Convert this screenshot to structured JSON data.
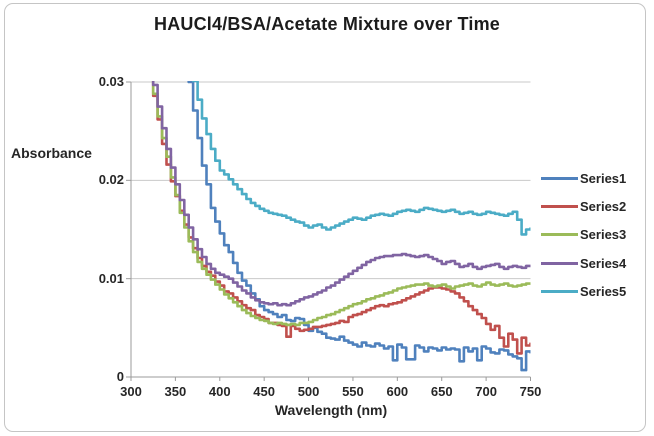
{
  "colors": {
    "gridline": "#c9c9c9",
    "axis": "#9b9b9b",
    "text": "#262626",
    "series1": "#4F81BD",
    "series2": "#C0504D",
    "series3": "#9BBB59",
    "series4": "#8064A2",
    "series5": "#4BACC6"
  },
  "chart_data": {
    "type": "line",
    "title": "HAUCl4/BSA/Acetate Mixture over Time",
    "xlabel": "Wavelength (nm)",
    "ylabel": "Absorbance",
    "xlim": [
      300,
      750
    ],
    "ylim": [
      0,
      0.03
    ],
    "x_ticks": [
      300,
      350,
      400,
      450,
      500,
      550,
      600,
      650,
      700,
      750
    ],
    "y_ticks": [
      0,
      0.01,
      0.02,
      0.03
    ],
    "y_tick_labels": [
      "0",
      "0.01",
      "0.02",
      "0.03"
    ],
    "grid": "horizontal-gridlines-at-0.01-0.02-0.03",
    "legend_position": "right",
    "x_step_nm": 5,
    "note": "Noisy step-like absorbance spectra; values sampled every 5 nm, series clipped at 0.03 top of plot",
    "series": [
      {
        "name": "Series1",
        "color": "#4F81BD",
        "x_start": 360,
        "values": [
          0.0331,
          0.03,
          0.0271,
          0.0243,
          0.0215,
          0.0196,
          0.0172,
          0.0158,
          0.0146,
          0.0134,
          0.0127,
          0.0116,
          0.0106,
          0.0098,
          0.0093,
          0.0085,
          0.0079,
          0.0072,
          0.0068,
          0.0066,
          0.0064,
          0.0061,
          0.0063,
          0.0058,
          0.0057,
          0.006,
          0.0059,
          0.0053,
          0.0047,
          0.005,
          0.0046,
          0.0044,
          0.004,
          0.0039,
          0.0038,
          0.0041,
          0.0037,
          0.0035,
          0.0033,
          0.0031,
          0.0035,
          0.0032,
          0.0031,
          0.0034,
          0.0032,
          0.0029,
          0.0031,
          0.0017,
          0.0033,
          0.003,
          0.0018,
          0.0018,
          0.0032,
          0.003,
          0.0026,
          0.003,
          0.0029,
          0.0027,
          0.003,
          0.0028,
          0.0029,
          0.0028,
          0.0016,
          0.003,
          0.0026,
          0.0029,
          0.0017,
          0.0031,
          0.0029,
          0.0025,
          0.0024,
          0.0028,
          0.0027,
          0.0023,
          0.0021,
          0.0019,
          0.0007,
          0.0026,
          0.0024
        ]
      },
      {
        "name": "Series2",
        "color": "#C0504D",
        "x_start": 315,
        "values": [
          0.033,
          0.0308,
          0.0286,
          0.0262,
          0.0237,
          0.0216,
          0.0199,
          0.0184,
          0.0169,
          0.0155,
          0.0142,
          0.0131,
          0.0121,
          0.0113,
          0.0107,
          0.0103,
          0.0097,
          0.0093,
          0.0087,
          0.0085,
          0.0081,
          0.0077,
          0.0073,
          0.007,
          0.0068,
          0.0063,
          0.0061,
          0.0059,
          0.0055,
          0.0055,
          0.0053,
          0.0052,
          0.0041,
          0.0052,
          0.0049,
          0.0047,
          0.0048,
          0.0049,
          0.0051,
          0.0051,
          0.0052,
          0.0053,
          0.0054,
          0.0055,
          0.0057,
          0.0056,
          0.0061,
          0.0063,
          0.0064,
          0.0066,
          0.0068,
          0.007,
          0.0072,
          0.0073,
          0.0072,
          0.0074,
          0.0075,
          0.0076,
          0.0078,
          0.008,
          0.0082,
          0.0084,
          0.0086,
          0.0088,
          0.009,
          0.0091,
          0.0091,
          0.009,
          0.0089,
          0.0087,
          0.0085,
          0.0081,
          0.0077,
          0.0072,
          0.0068,
          0.0064,
          0.006,
          0.0054,
          0.0048,
          0.0052,
          0.004,
          0.0031,
          0.0044,
          0.0038,
          0.0024,
          0.004,
          0.0032,
          0.0035
        ]
      },
      {
        "name": "Series3",
        "color": "#9BBB59",
        "x_start": 315,
        "values": [
          0.0335,
          0.0312,
          0.0288,
          0.0265,
          0.0243,
          0.0224,
          0.0203,
          0.0185,
          0.0167,
          0.0152,
          0.0138,
          0.0127,
          0.0117,
          0.011,
          0.0104,
          0.0099,
          0.0094,
          0.0089,
          0.0084,
          0.008,
          0.0076,
          0.0072,
          0.0068,
          0.0065,
          0.0062,
          0.006,
          0.0058,
          0.0057,
          0.0055,
          0.0054,
          0.0055,
          0.0054,
          0.0053,
          0.0054,
          0.0053,
          0.0055,
          0.0055,
          0.0056,
          0.0058,
          0.006,
          0.0061,
          0.0063,
          0.0064,
          0.0066,
          0.0068,
          0.007,
          0.0072,
          0.0074,
          0.0075,
          0.0077,
          0.0079,
          0.008,
          0.0082,
          0.0083,
          0.0085,
          0.0086,
          0.0088,
          0.009,
          0.0091,
          0.0092,
          0.0093,
          0.0094,
          0.0094,
          0.0095,
          0.0093,
          0.0092,
          0.0093,
          0.0094,
          0.0092,
          0.009,
          0.0092,
          0.0093,
          0.0094,
          0.0095,
          0.0093,
          0.0092,
          0.0094,
          0.0096,
          0.0094,
          0.0093,
          0.0094,
          0.0095,
          0.0093,
          0.0092,
          0.0093,
          0.0094,
          0.0095,
          0.0096
        ]
      },
      {
        "name": "Series4",
        "color": "#8064A2",
        "x_start": 315,
        "values": [
          0.034,
          0.0318,
          0.0297,
          0.0275,
          0.0253,
          0.0232,
          0.0213,
          0.0196,
          0.018,
          0.0165,
          0.0152,
          0.014,
          0.013,
          0.0122,
          0.0115,
          0.011,
          0.0106,
          0.0104,
          0.0102,
          0.01,
          0.0096,
          0.0092,
          0.0088,
          0.0085,
          0.0081,
          0.0078,
          0.0076,
          0.0075,
          0.0074,
          0.0075,
          0.0073,
          0.0074,
          0.0073,
          0.0075,
          0.0077,
          0.0079,
          0.0081,
          0.0082,
          0.0084,
          0.0086,
          0.0088,
          0.0091,
          0.0093,
          0.0096,
          0.0099,
          0.0102,
          0.0105,
          0.0108,
          0.0111,
          0.0114,
          0.0117,
          0.0119,
          0.0121,
          0.0122,
          0.0123,
          0.0123,
          0.0124,
          0.0124,
          0.0125,
          0.0124,
          0.0123,
          0.0122,
          0.0123,
          0.0124,
          0.0122,
          0.012,
          0.0118,
          0.0115,
          0.0117,
          0.0118,
          0.0115,
          0.0112,
          0.0113,
          0.0115,
          0.0112,
          0.011,
          0.0112,
          0.0113,
          0.0114,
          0.0115,
          0.0112,
          0.011,
          0.0112,
          0.0113,
          0.0112,
          0.0111,
          0.0113,
          0.0114
        ]
      },
      {
        "name": "Series5",
        "color": "#4BACC6",
        "x_start": 360,
        "values": [
          0.033,
          0.0315,
          0.0301,
          0.0282,
          0.0263,
          0.0247,
          0.0232,
          0.022,
          0.021,
          0.0206,
          0.0201,
          0.0196,
          0.0191,
          0.0186,
          0.0181,
          0.0177,
          0.0174,
          0.0171,
          0.0169,
          0.0167,
          0.0166,
          0.0165,
          0.0164,
          0.0162,
          0.016,
          0.0158,
          0.0157,
          0.0154,
          0.0152,
          0.0154,
          0.0155,
          0.0152,
          0.015,
          0.0152,
          0.0154,
          0.0156,
          0.0158,
          0.016,
          0.0162,
          0.0161,
          0.016,
          0.0162,
          0.0164,
          0.0165,
          0.0166,
          0.0165,
          0.0164,
          0.0166,
          0.0168,
          0.0169,
          0.017,
          0.0169,
          0.0168,
          0.017,
          0.0172,
          0.0171,
          0.017,
          0.0169,
          0.0168,
          0.0169,
          0.017,
          0.0168,
          0.0166,
          0.0167,
          0.0168,
          0.0166,
          0.0165,
          0.0166,
          0.0168,
          0.0167,
          0.0166,
          0.0165,
          0.0164,
          0.0166,
          0.0168,
          0.016,
          0.0145,
          0.015,
          0.0152
        ]
      }
    ]
  }
}
